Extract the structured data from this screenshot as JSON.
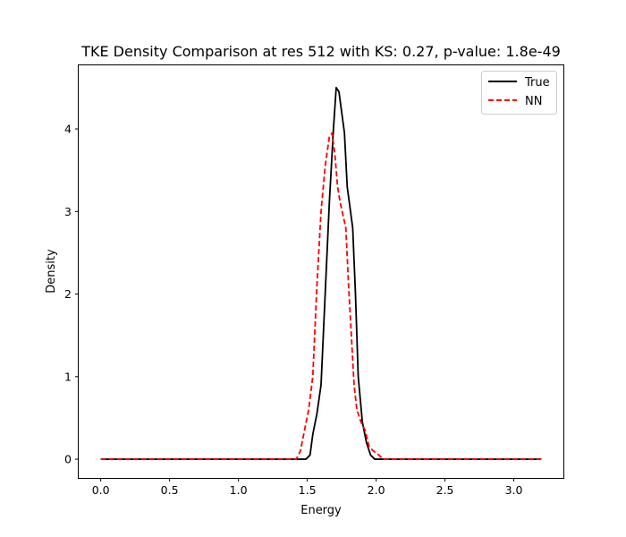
{
  "chart_data": {
    "type": "line",
    "title": "TKE Density Comparison at res 512 with KS: 0.27, p-value: 1.8e-49",
    "xlabel": "Energy",
    "ylabel": "Density",
    "xlim": [
      -0.16,
      3.36
    ],
    "ylim": [
      -0.227,
      4.77
    ],
    "xticks": [
      {
        "value": 0.0,
        "label": "0.0"
      },
      {
        "value": 0.5,
        "label": "0.5"
      },
      {
        "value": 1.0,
        "label": "1.0"
      },
      {
        "value": 1.5,
        "label": "1.5"
      },
      {
        "value": 2.0,
        "label": "2.0"
      },
      {
        "value": 2.5,
        "label": "2.5"
      },
      {
        "value": 3.0,
        "label": "3.0"
      }
    ],
    "yticks": [
      {
        "value": 0,
        "label": "0"
      },
      {
        "value": 1,
        "label": "1"
      },
      {
        "value": 2,
        "label": "2"
      },
      {
        "value": 3,
        "label": "3"
      },
      {
        "value": 4,
        "label": "4"
      }
    ],
    "grid": false,
    "legend_position": "top-right",
    "series": [
      {
        "name": "True",
        "color": "#000000",
        "style": "solid",
        "x": [
          0.0,
          1.4,
          1.49,
          1.52,
          1.54,
          1.57,
          1.6,
          1.63,
          1.66,
          1.69,
          1.71,
          1.73,
          1.75,
          1.77,
          1.79,
          1.81,
          1.83,
          1.85,
          1.87,
          1.9,
          1.93,
          1.96,
          1.99,
          2.02,
          2.05,
          3.2
        ],
        "y": [
          0.0,
          0.0,
          0.0,
          0.05,
          0.3,
          0.55,
          0.9,
          2.0,
          3.1,
          4.0,
          4.5,
          4.45,
          4.2,
          3.95,
          3.3,
          3.05,
          2.8,
          2.0,
          1.0,
          0.45,
          0.2,
          0.05,
          0.0,
          0.0,
          0.0,
          0.0
        ]
      },
      {
        "name": "NN",
        "color": "#ff0000",
        "style": "dashed",
        "x": [
          0.0,
          1.42,
          1.45,
          1.48,
          1.51,
          1.54,
          1.57,
          1.6,
          1.63,
          1.66,
          1.68,
          1.7,
          1.72,
          1.74,
          1.76,
          1.78,
          1.8,
          1.82,
          1.84,
          1.86,
          1.89,
          1.92,
          1.95,
          1.98,
          2.02,
          2.05,
          2.1,
          3.2
        ],
        "y": [
          0.0,
          0.0,
          0.1,
          0.35,
          0.6,
          1.0,
          2.1,
          3.0,
          3.55,
          3.9,
          3.95,
          3.7,
          3.3,
          3.1,
          2.95,
          2.8,
          2.1,
          1.5,
          0.9,
          0.6,
          0.45,
          0.35,
          0.15,
          0.1,
          0.05,
          0.0,
          0.0,
          0.0
        ]
      }
    ]
  }
}
